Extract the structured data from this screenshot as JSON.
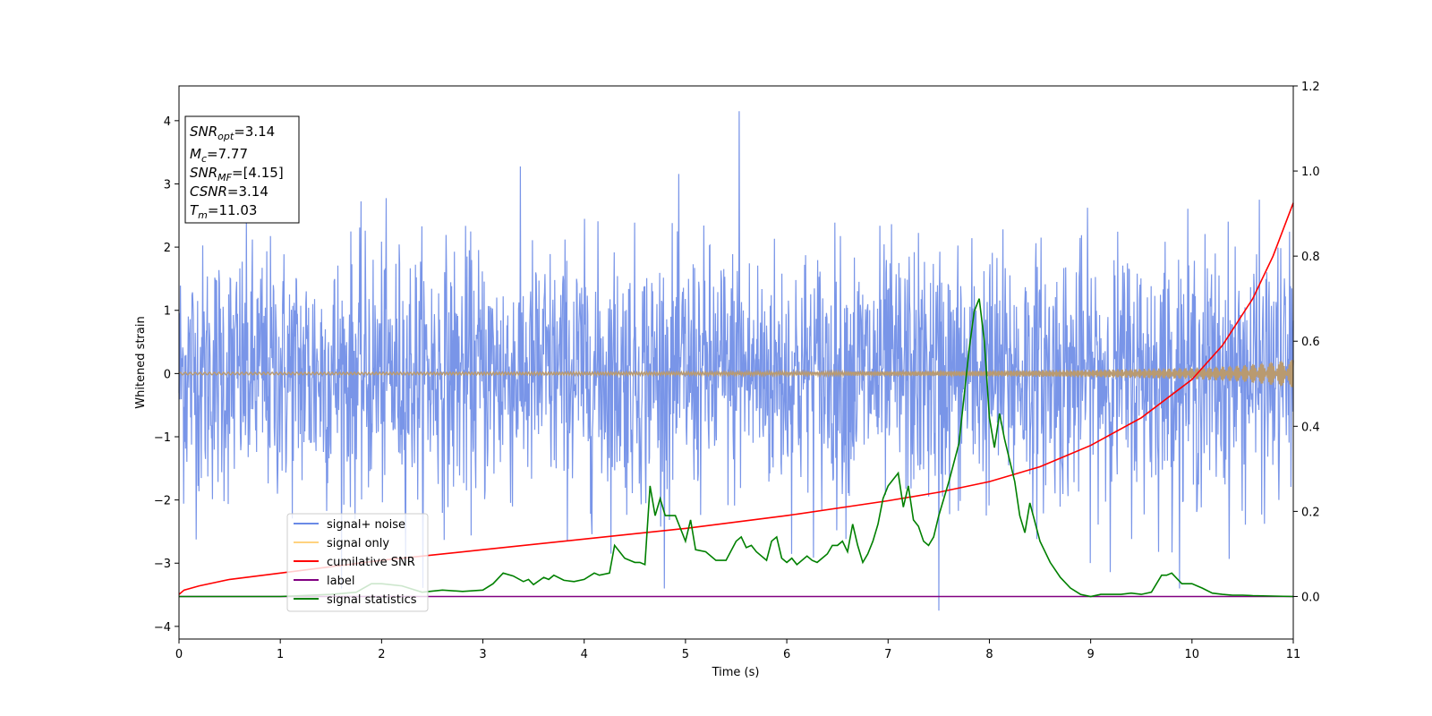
{
  "chart_data": {
    "type": "line",
    "title": "",
    "xlabel": "Time (s)",
    "ylabel": "Whitened strain",
    "y2label": "",
    "xlim": [
      0,
      11
    ],
    "ylim": [
      -4.2,
      4.55
    ],
    "y2lim": [
      -0.1,
      1.2
    ],
    "xticks": [
      0,
      1,
      2,
      3,
      4,
      5,
      6,
      7,
      8,
      9,
      10,
      11
    ],
    "xtick_labels": [
      "0",
      "1",
      "2",
      "3",
      "4",
      "5",
      "6",
      "7",
      "8",
      "9",
      "10",
      "11"
    ],
    "yticks": [
      -4,
      -3,
      -2,
      -1,
      0,
      1,
      2,
      3,
      4
    ],
    "ytick_labels": [
      "−4",
      "−3",
      "−2",
      "−1",
      "0",
      "1",
      "2",
      "3",
      "4"
    ],
    "y2ticks": [
      0.0,
      0.2,
      0.4,
      0.6,
      0.8,
      1.0,
      1.2
    ],
    "y2tick_labels": [
      "0.0",
      "0.2",
      "0.4",
      "0.6",
      "0.8",
      "1.0",
      "1.2"
    ],
    "grid": false,
    "legend": {
      "placement": "lower-left",
      "entries": [
        {
          "label": "signal+ noise",
          "color": "#6a8ae6"
        },
        {
          "label": "signal only",
          "color": "#ffd27f"
        },
        {
          "label": "cumilative SNR",
          "color": "#ff0000"
        },
        {
          "label": "label",
          "color": "#800080"
        },
        {
          "label": "signal statistics",
          "color": "#008000"
        }
      ]
    },
    "annotation_box": {
      "placement": "top-left",
      "lines": [
        {
          "sym": "SNR",
          "sub": "opt",
          "rest": "=3.14"
        },
        {
          "sym": "M",
          "sub": "c",
          "rest": "=7.77"
        },
        {
          "sym": "SNR",
          "sub": "MF",
          "rest": "=[4.15]"
        },
        {
          "sym": "CSNR",
          "sub": "",
          "rest": "=3.14"
        },
        {
          "sym": "T",
          "sub": "m",
          "rest": "=11.03"
        }
      ]
    },
    "series": [
      {
        "name": "signal+ noise",
        "axis": "left",
        "color": "#6a8ae6",
        "kind": "noise",
        "amplitude_sigma": 1.0,
        "peak_max": 4.15,
        "peak_min": -3.75
      },
      {
        "name": "signal only",
        "axis": "left",
        "color": "#ffd27f",
        "kind": "chirp",
        "envelope": {
          "x": [
            0,
            2,
            4,
            6,
            7,
            8,
            9,
            10,
            10.5,
            11
          ],
          "y": [
            0.02,
            0.02,
            0.025,
            0.03,
            0.035,
            0.045,
            0.06,
            0.09,
            0.13,
            0.22
          ]
        }
      },
      {
        "name": "cumilative SNR",
        "axis": "right",
        "color": "#ff0000",
        "x": [
          0,
          0.05,
          0.2,
          0.5,
          1,
          1.5,
          2,
          3,
          4,
          5,
          6,
          7,
          7.5,
          8,
          8.5,
          9,
          9.5,
          10,
          10.3,
          10.6,
          10.8,
          11
        ],
        "y": [
          0.005,
          0.015,
          0.025,
          0.04,
          0.055,
          0.07,
          0.085,
          0.11,
          0.135,
          0.16,
          0.19,
          0.225,
          0.245,
          0.27,
          0.305,
          0.355,
          0.42,
          0.51,
          0.59,
          0.7,
          0.8,
          0.925
        ]
      },
      {
        "name": "label",
        "axis": "right",
        "color": "#800080",
        "x": [
          0,
          11
        ],
        "y": [
          0.0,
          0.0
        ]
      },
      {
        "name": "signal statistics",
        "axis": "right",
        "color": "#008000",
        "x": [
          0,
          0.5,
          1,
          1.5,
          1.75,
          1.9,
          2,
          2.2,
          2.4,
          2.6,
          2.8,
          3,
          3.1,
          3.2,
          3.3,
          3.4,
          3.45,
          3.5,
          3.6,
          3.65,
          3.7,
          3.8,
          3.9,
          4,
          4.1,
          4.15,
          4.25,
          4.3,
          4.4,
          4.5,
          4.55,
          4.6,
          4.65,
          4.7,
          4.75,
          4.8,
          4.9,
          5,
          5.05,
          5.1,
          5.2,
          5.3,
          5.4,
          5.5,
          5.55,
          5.6,
          5.65,
          5.7,
          5.8,
          5.85,
          5.9,
          5.95,
          6.0,
          6.05,
          6.1,
          6.2,
          6.25,
          6.3,
          6.4,
          6.45,
          6.5,
          6.55,
          6.6,
          6.65,
          6.7,
          6.75,
          6.8,
          6.85,
          6.9,
          6.95,
          7.0,
          7.05,
          7.1,
          7.15,
          7.2,
          7.25,
          7.3,
          7.35,
          7.4,
          7.45,
          7.5,
          7.6,
          7.7,
          7.8,
          7.85,
          7.9,
          7.95,
          8.0,
          8.05,
          8.1,
          8.15,
          8.2,
          8.25,
          8.3,
          8.35,
          8.4,
          8.5,
          8.6,
          8.7,
          8.8,
          8.9,
          9.0,
          9.1,
          9.2,
          9.3,
          9.4,
          9.5,
          9.6,
          9.7,
          9.75,
          9.8,
          9.9,
          10.0,
          10.05,
          10.1,
          10.2,
          10.3,
          10.4,
          10.5,
          10.6,
          10.8,
          11
        ],
        "y": [
          0.0,
          0.0,
          0.0,
          0.005,
          0.01,
          0.03,
          0.03,
          0.025,
          0.01,
          0.015,
          0.012,
          0.015,
          0.03,
          0.055,
          0.048,
          0.035,
          0.04,
          0.028,
          0.045,
          0.04,
          0.05,
          0.038,
          0.035,
          0.04,
          0.055,
          0.05,
          0.055,
          0.12,
          0.09,
          0.08,
          0.08,
          0.075,
          0.26,
          0.19,
          0.23,
          0.19,
          0.19,
          0.13,
          0.18,
          0.11,
          0.105,
          0.085,
          0.085,
          0.13,
          0.14,
          0.115,
          0.12,
          0.105,
          0.085,
          0.13,
          0.14,
          0.09,
          0.08,
          0.09,
          0.075,
          0.095,
          0.085,
          0.08,
          0.1,
          0.12,
          0.12,
          0.13,
          0.105,
          0.17,
          0.12,
          0.08,
          0.1,
          0.13,
          0.17,
          0.23,
          0.26,
          0.275,
          0.29,
          0.21,
          0.26,
          0.18,
          0.165,
          0.13,
          0.12,
          0.14,
          0.19,
          0.27,
          0.36,
          0.58,
          0.67,
          0.7,
          0.6,
          0.42,
          0.35,
          0.43,
          0.37,
          0.32,
          0.27,
          0.19,
          0.15,
          0.22,
          0.13,
          0.08,
          0.045,
          0.02,
          0.005,
          0.0,
          0.005,
          0.005,
          0.005,
          0.008,
          0.005,
          0.01,
          0.05,
          0.05,
          0.055,
          0.03,
          0.03,
          0.025,
          0.02,
          0.008,
          0.005,
          0.003,
          0.003,
          0.002,
          0.001,
          0.0
        ]
      }
    ]
  }
}
